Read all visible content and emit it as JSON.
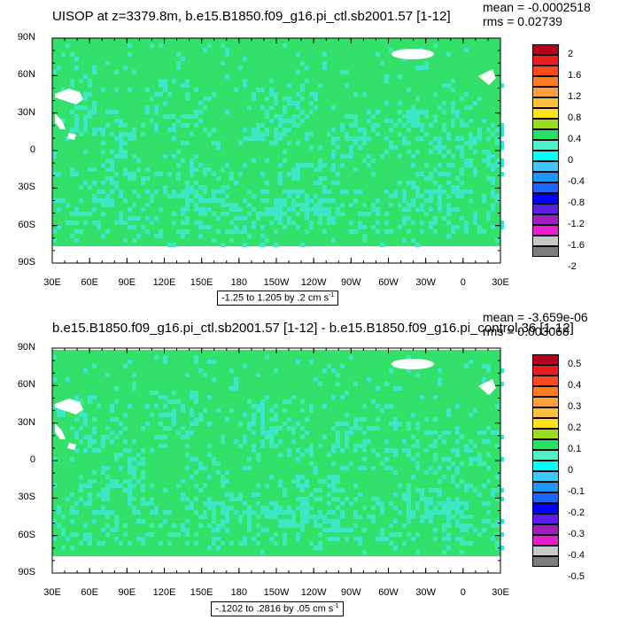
{
  "panels": [
    {
      "title": "UISOP at z=3379.8m, b.e15.B1850.f09_g16.pi_ctl.sb2001.57 [1-12]",
      "mean_text": "mean = -0.0002518",
      "rms_text": "rms = 0.02739",
      "info_text": "-1.25 to 1.205 by .2 cm s",
      "info_sup": "-1",
      "colorbar_labels": [
        "2",
        "1.6",
        "1.2",
        "0.8",
        "0.4",
        "0",
        "-0.4",
        "-0.8",
        "-1.2",
        "-1.6",
        "-2"
      ]
    },
    {
      "title": "b.e15.B1850.f09_g16.pi_ctl.sb2001.57 [1-12] - b.e15.B1850.f09_g16.pi_control.36 [1-12]",
      "mean_text": "mean = -3.659e-06",
      "rms_text": "rms = 0.003068",
      "info_text": "-.1202 to .2816 by .05 cm s",
      "info_sup": "-1",
      "colorbar_labels": [
        "0.5",
        "0.4",
        "0.3",
        "0.2",
        "0.1",
        "0",
        "-0.1",
        "-0.2",
        "-0.3",
        "-0.4",
        "-0.5"
      ]
    }
  ],
  "lat_labels": [
    "90N",
    "60N",
    "30N",
    "0",
    "30S",
    "60S",
    "90S"
  ],
  "lon_labels": [
    "30E",
    "60E",
    "90E",
    "120E",
    "150E",
    "180",
    "150W",
    "120W",
    "90W",
    "60W",
    "30W",
    "0",
    "30E"
  ],
  "colorbar_colors": [
    "#b4001e",
    "#e61e1e",
    "#ff4a1e",
    "#ff7d1e",
    "#ffa03c",
    "#ffbe3c",
    "#ffe21e",
    "#9bdc1e",
    "#28e164",
    "#50f0c8",
    "#00ffff",
    "#3cc8ff",
    "#1e96ff",
    "#1e64ff",
    "#0000ff",
    "#5a1ee6",
    "#a01ebe",
    "#e61ecd",
    "#c8c8c8",
    "#7d7d7d"
  ],
  "field_color": "#32e06a",
  "anomaly_color": "#3ce8c4",
  "chart_data": [
    {
      "type": "heatmap",
      "title": "UISOP at z=3379.8m, b.e15.B1850.f09_g16.pi_ctl.sb2001.57 [1-12]",
      "x_ticks": [
        "30E",
        "60E",
        "90E",
        "120E",
        "150E",
        "180",
        "150W",
        "120W",
        "90W",
        "60W",
        "30W",
        "0",
        "30E"
      ],
      "y_ticks": [
        "90N",
        "60N",
        "30N",
        "0",
        "30S",
        "60S",
        "90S"
      ],
      "color_levels": [
        -2,
        -1.6,
        -1.2,
        -0.8,
        -0.4,
        0,
        0.4,
        0.8,
        1.2,
        1.6,
        2
      ],
      "value_range": [
        -1.25,
        1.205
      ],
      "contour_interval": 0.2,
      "mean": -0.0002518,
      "rms": 0.02739
    },
    {
      "type": "heatmap",
      "title": "b.e15.B1850.f09_g16.pi_ctl.sb2001.57 [1-12] - b.e15.B1850.f09_g16.pi_control.36 [1-12]",
      "x_ticks": [
        "30E",
        "60E",
        "90E",
        "120E",
        "150E",
        "180",
        "150W",
        "120W",
        "90W",
        "60W",
        "30W",
        "0",
        "30E"
      ],
      "y_ticks": [
        "90N",
        "60N",
        "30N",
        "0",
        "30S",
        "60S",
        "90S"
      ],
      "color_levels": [
        -0.5,
        -0.4,
        -0.3,
        -0.2,
        -0.1,
        0,
        0.1,
        0.2,
        0.3,
        0.4,
        0.5
      ],
      "value_range": [
        -0.1202,
        0.2816
      ],
      "contour_interval": 0.05,
      "mean": -3.659e-06,
      "rms": 0.003068
    }
  ]
}
